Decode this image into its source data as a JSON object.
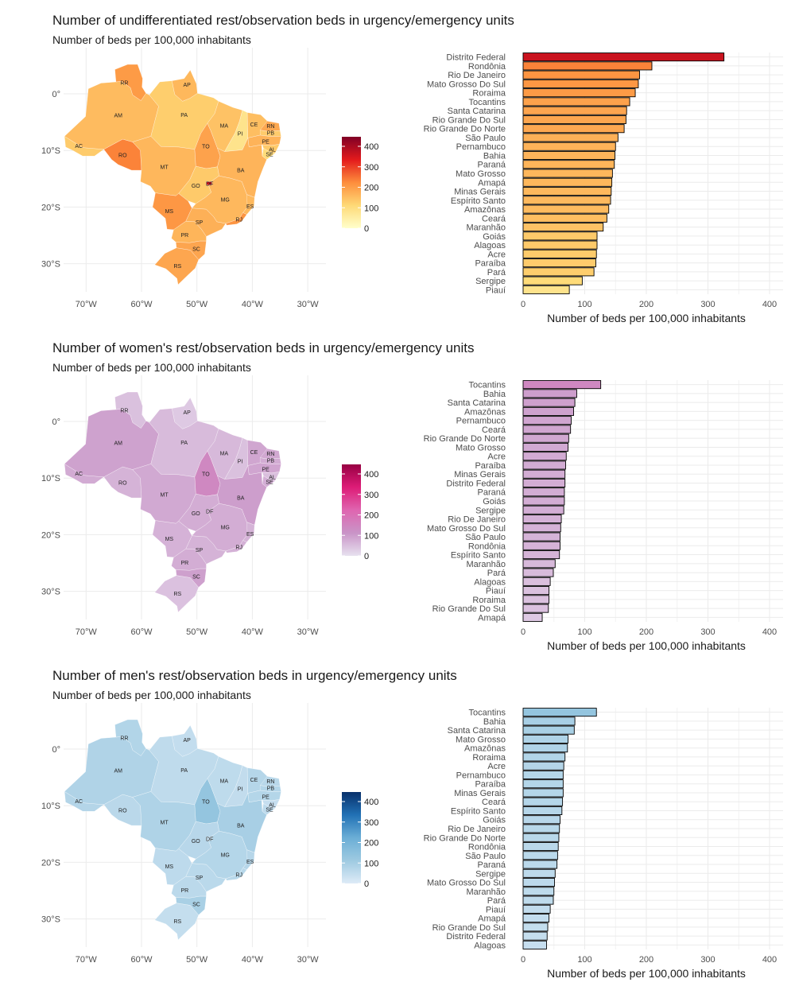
{
  "chart_data": [
    {
      "type": "bar",
      "orientation": "horizontal",
      "title": "Number of undifferentiated rest/observation beds in urgency/emergency units",
      "subtitle": "Number of beds per 100,000 inhabitants",
      "xlabel": "Number of beds per 100,000 inhabitants",
      "xlim": [
        0,
        420
      ],
      "x_ticks": [
        "0",
        "100",
        "200",
        "300",
        "400"
      ],
      "palette": [
        "#ffffcc",
        "#fed976",
        "#fd8d3c",
        "#e31a1c",
        "#800026"
      ],
      "categories": [
        "Distrito Federal",
        "Rondônia",
        "Rio De Janeiro",
        "Mato Grosso Do Sul",
        "Roraima",
        "Tocantins",
        "Santa Catarina",
        "Rio Grande Do Sul",
        "Rio Grande Do Norte",
        "São Paulo",
        "Pernambuco",
        "Bahia",
        "Paraná",
        "Mato Grosso",
        "Amapá",
        "Minas Gerais",
        "Espírito Santo",
        "Amazônas",
        "Ceará",
        "Maranhão",
        "Goiás",
        "Alagoas",
        "Acre",
        "Paraíba",
        "Pará",
        "Sergipe",
        "Piauí"
      ],
      "values": [
        326,
        209,
        189,
        187,
        182,
        173,
        168,
        167,
        164,
        154,
        150,
        149,
        148,
        145,
        144,
        143,
        142,
        139,
        136,
        130,
        120,
        120,
        119,
        118,
        115,
        96,
        75
      ],
      "map": {
        "lon_ticks": [
          "70°W",
          "60°W",
          "50°W",
          "40°W",
          "30°W"
        ],
        "lat_ticks": [
          "0°",
          "10°S",
          "20°S",
          "30°S"
        ],
        "legend_ticks": [
          "0",
          "100",
          "200",
          "300",
          "400"
        ],
        "legend_max": 400,
        "states": [
          {
            "uf": "RR",
            "v": 182
          },
          {
            "uf": "AP",
            "v": 144
          },
          {
            "uf": "AM",
            "v": 139
          },
          {
            "uf": "PA",
            "v": 115
          },
          {
            "uf": "MA",
            "v": 130
          },
          {
            "uf": "PI",
            "v": 75
          },
          {
            "uf": "CE",
            "v": 136
          },
          {
            "uf": "RN",
            "v": 164
          },
          {
            "uf": "PB",
            "v": 118
          },
          {
            "uf": "PE",
            "v": 150
          },
          {
            "uf": "AL",
            "v": 120
          },
          {
            "uf": "SE",
            "v": 96
          },
          {
            "uf": "AC",
            "v": 119
          },
          {
            "uf": "RO",
            "v": 209
          },
          {
            "uf": "TO",
            "v": 173
          },
          {
            "uf": "MT",
            "v": 145
          },
          {
            "uf": "BA",
            "v": 149
          },
          {
            "uf": "GO",
            "v": 120
          },
          {
            "uf": "DF",
            "v": 326
          },
          {
            "uf": "MG",
            "v": 143
          },
          {
            "uf": "ES",
            "v": 142
          },
          {
            "uf": "MS",
            "v": 187
          },
          {
            "uf": "SP",
            "v": 154
          },
          {
            "uf": "RJ",
            "v": 189
          },
          {
            "uf": "PR",
            "v": 148
          },
          {
            "uf": "SC",
            "v": 168
          },
          {
            "uf": "RS",
            "v": 167
          }
        ]
      }
    },
    {
      "type": "bar",
      "orientation": "horizontal",
      "title": "Number of women's rest/observation beds in urgency/emergency units",
      "subtitle": "Number of beds per 100,000 inhabitants",
      "xlabel": "Number of beds per 100,000 inhabitants",
      "xlim": [
        0,
        420
      ],
      "x_ticks": [
        "0",
        "100",
        "200",
        "300",
        "400"
      ],
      "palette": [
        "#e7e1ef",
        "#c994c7",
        "#df65b0",
        "#dd1c77",
        "#980043"
      ],
      "categories": [
        "Tocantins",
        "Bahia",
        "Santa Catarina",
        "Amazônas",
        "Pernambuco",
        "Ceará",
        "Rio Grande Do Norte",
        "Mato Grosso",
        "Acre",
        "Paraíba",
        "Minas Gerais",
        "Distrito Federal",
        "Paraná",
        "Goiás",
        "Sergipe",
        "Rio De Janeiro",
        "Mato Grosso Do Sul",
        "São Paulo",
        "Rondônia",
        "Espírito Santo",
        "Maranhão",
        "Pará",
        "Alagoas",
        "Piauí",
        "Roraima",
        "Rio Grande Do Sul",
        "Amapá"
      ],
      "values": [
        126,
        87,
        84,
        82,
        78,
        77,
        74,
        73,
        70,
        69,
        68,
        68,
        67,
        67,
        66,
        62,
        61,
        60,
        60,
        59,
        52,
        49,
        44,
        42,
        42,
        41,
        31
      ],
      "map": {
        "lon_ticks": [
          "70°W",
          "60°W",
          "50°W",
          "40°W",
          "30°W"
        ],
        "lat_ticks": [
          "0°",
          "10°S",
          "20°S",
          "30°S"
        ],
        "legend_ticks": [
          "0",
          "100",
          "200",
          "300",
          "400"
        ],
        "legend_max": 400,
        "states": [
          {
            "uf": "RR",
            "v": 42
          },
          {
            "uf": "AP",
            "v": 31
          },
          {
            "uf": "AM",
            "v": 82
          },
          {
            "uf": "PA",
            "v": 49
          },
          {
            "uf": "MA",
            "v": 52
          },
          {
            "uf": "PI",
            "v": 42
          },
          {
            "uf": "CE",
            "v": 77
          },
          {
            "uf": "RN",
            "v": 74
          },
          {
            "uf": "PB",
            "v": 69
          },
          {
            "uf": "PE",
            "v": 78
          },
          {
            "uf": "AL",
            "v": 44
          },
          {
            "uf": "SE",
            "v": 66
          },
          {
            "uf": "AC",
            "v": 70
          },
          {
            "uf": "RO",
            "v": 60
          },
          {
            "uf": "TO",
            "v": 126
          },
          {
            "uf": "MT",
            "v": 73
          },
          {
            "uf": "BA",
            "v": 87
          },
          {
            "uf": "GO",
            "v": 67
          },
          {
            "uf": "DF",
            "v": 68
          },
          {
            "uf": "MG",
            "v": 68
          },
          {
            "uf": "ES",
            "v": 59
          },
          {
            "uf": "MS",
            "v": 61
          },
          {
            "uf": "SP",
            "v": 60
          },
          {
            "uf": "RJ",
            "v": 62
          },
          {
            "uf": "PR",
            "v": 67
          },
          {
            "uf": "SC",
            "v": 84
          },
          {
            "uf": "RS",
            "v": 41
          }
        ]
      }
    },
    {
      "type": "bar",
      "orientation": "horizontal",
      "title": "Number of men's rest/observation beds in urgency/emergency units",
      "subtitle": "Number of beds per 100,000 inhabitants",
      "xlabel": "Number of beds per 100,000 inhabitants",
      "xlim": [
        0,
        420
      ],
      "x_ticks": [
        "0",
        "100",
        "200",
        "300",
        "400"
      ],
      "palette": [
        "#deebf7",
        "#9ecae1",
        "#6baed6",
        "#2171b5",
        "#08306b"
      ],
      "categories": [
        "Tocantins",
        "Bahia",
        "Santa Catarina",
        "Mato Grosso",
        "Amazônas",
        "Roraima",
        "Acre",
        "Pernambuco",
        "Paraíba",
        "Minas Gerais",
        "Ceará",
        "Espírito Santo",
        "Goiás",
        "Rio De Janeiro",
        "Rio Grande Do Norte",
        "Rondônia",
        "São Paulo",
        "Paraná",
        "Sergipe",
        "Mato Grosso Do Sul",
        "Maranhão",
        "Pará",
        "Piauí",
        "Amapá",
        "Rio Grande Do Sul",
        "Distrito Federal",
        "Alagoas"
      ],
      "values": [
        119,
        84,
        83,
        73,
        72,
        68,
        66,
        65,
        65,
        65,
        64,
        63,
        60,
        59,
        58,
        57,
        56,
        55,
        52,
        51,
        50,
        49,
        44,
        42,
        40,
        39,
        38
      ],
      "map": {
        "lon_ticks": [
          "70°W",
          "60°W",
          "50°W",
          "40°W",
          "30°W"
        ],
        "lat_ticks": [
          "0°",
          "10°S",
          "20°S",
          "30°S"
        ],
        "legend_ticks": [
          "0",
          "100",
          "200",
          "300",
          "400"
        ],
        "legend_max": 400,
        "states": [
          {
            "uf": "RR",
            "v": 68
          },
          {
            "uf": "AP",
            "v": 42
          },
          {
            "uf": "AM",
            "v": 72
          },
          {
            "uf": "PA",
            "v": 49
          },
          {
            "uf": "MA",
            "v": 50
          },
          {
            "uf": "PI",
            "v": 44
          },
          {
            "uf": "CE",
            "v": 64
          },
          {
            "uf": "RN",
            "v": 58
          },
          {
            "uf": "PB",
            "v": 65
          },
          {
            "uf": "PE",
            "v": 65
          },
          {
            "uf": "AL",
            "v": 38
          },
          {
            "uf": "SE",
            "v": 52
          },
          {
            "uf": "AC",
            "v": 66
          },
          {
            "uf": "RO",
            "v": 57
          },
          {
            "uf": "TO",
            "v": 119
          },
          {
            "uf": "MT",
            "v": 73
          },
          {
            "uf": "BA",
            "v": 84
          },
          {
            "uf": "GO",
            "v": 60
          },
          {
            "uf": "DF",
            "v": 39
          },
          {
            "uf": "MG",
            "v": 65
          },
          {
            "uf": "ES",
            "v": 63
          },
          {
            "uf": "MS",
            "v": 51
          },
          {
            "uf": "SP",
            "v": 56
          },
          {
            "uf": "RJ",
            "v": 59
          },
          {
            "uf": "PR",
            "v": 55
          },
          {
            "uf": "SC",
            "v": 83
          },
          {
            "uf": "RS",
            "v": 40
          }
        ]
      }
    }
  ]
}
